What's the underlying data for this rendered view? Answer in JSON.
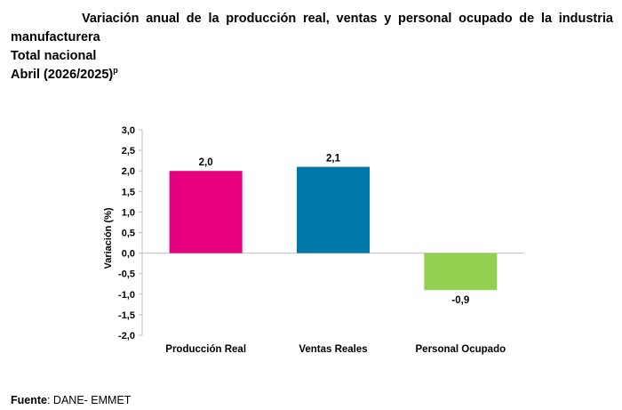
{
  "header": {
    "title_line1": "Variación anual de la producción real, ventas y personal ocupado de la industria",
    "title_line2": "manufacturera",
    "title_line3": "Total nacional",
    "title_line4": "Abril (2026/2025)",
    "title_superscript": "p"
  },
  "chart_data": {
    "type": "bar",
    "categories": [
      "Producción Real",
      "Ventas Reales",
      "Personal Ocupado"
    ],
    "values": [
      2.0,
      2.1,
      -0.9
    ],
    "value_labels": [
      "2,0",
      "2,1",
      "-0,9"
    ],
    "colors": [
      "#e6007e",
      "#0078a8",
      "#92d050"
    ],
    "ylabel": "Variación (%)",
    "ylim": [
      -2.0,
      3.0
    ],
    "yticks": [
      3.0,
      2.5,
      2.0,
      1.5,
      1.0,
      0.5,
      0.0,
      -0.5,
      -1.0,
      -1.5,
      -2.0
    ],
    "ytick_labels": [
      "3,0",
      "2,5",
      "2,0",
      "1,5",
      "1,0",
      "0,5",
      "0,0",
      "-0,5",
      "-1,0",
      "-1,5",
      "-2,0"
    ],
    "grid": false,
    "legend": "none"
  },
  "footer": {
    "source_label": "Fuente",
    "source_text": ": DANE- EMMET"
  }
}
